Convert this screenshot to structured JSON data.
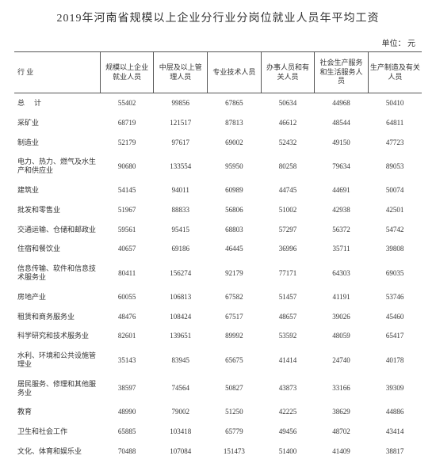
{
  "title": "2019年河南省规模以上企业分行业分岗位就业人员年平均工资",
  "unit_label": "单位：   元",
  "columns": {
    "industry": "行        业",
    "c1": "规模以上企业就业人员",
    "c2": "中层及以上管理人员",
    "c3": "专业技术人员",
    "c4": "办事人员和有关人员",
    "c5": "社会生产服务和生活服务人员",
    "c6": "生产制造及有关人员"
  },
  "rows": [
    {
      "label": "总计",
      "total": true,
      "v": [
        "55402",
        "99856",
        "67865",
        "50634",
        "44968",
        "50410"
      ]
    },
    {
      "label": "采矿业",
      "v": [
        "68719",
        "121517",
        "87813",
        "46612",
        "48544",
        "64811"
      ]
    },
    {
      "label": "制造业",
      "v": [
        "52179",
        "97617",
        "69002",
        "52432",
        "49150",
        "47723"
      ]
    },
    {
      "label": "电力、热力、燃气及水生产和供应业",
      "v": [
        "90680",
        "133554",
        "95950",
        "80258",
        "79634",
        "89053"
      ]
    },
    {
      "label": "建筑业",
      "v": [
        "54145",
        "94011",
        "60989",
        "44745",
        "44691",
        "50074"
      ]
    },
    {
      "label": "批发和零售业",
      "v": [
        "51967",
        "88833",
        "56806",
        "51002",
        "42938",
        "42501"
      ]
    },
    {
      "label": "交通运输、仓储和邮政业",
      "v": [
        "59561",
        "95415",
        "68803",
        "57297",
        "56372",
        "54742"
      ]
    },
    {
      "label": "住宿和餐饮业",
      "v": [
        "40657",
        "69186",
        "46445",
        "36996",
        "35711",
        "39808"
      ]
    },
    {
      "label": "信息传输、软件和信息技术服务业",
      "v": [
        "80411",
        "156274",
        "92179",
        "77171",
        "64303",
        "69035"
      ]
    },
    {
      "label": "房地产业",
      "v": [
        "60055",
        "106813",
        "67582",
        "51457",
        "41191",
        "53746"
      ]
    },
    {
      "label": "租赁和商务服务业",
      "v": [
        "48476",
        "108424",
        "67517",
        "48657",
        "39026",
        "45460"
      ]
    },
    {
      "label": "科学研究和技术服务业",
      "v": [
        "82601",
        "139651",
        "89992",
        "53592",
        "48059",
        "65417"
      ]
    },
    {
      "label": "水利、环境和公共设施管理业",
      "v": [
        "35143",
        "83945",
        "65675",
        "41414",
        "24740",
        "40178"
      ]
    },
    {
      "label": "居民服务、修理和其他服务业",
      "v": [
        "38597",
        "74564",
        "50827",
        "43873",
        "33166",
        "39309"
      ]
    },
    {
      "label": "教育",
      "v": [
        "48990",
        "79002",
        "51250",
        "42225",
        "38629",
        "44886"
      ]
    },
    {
      "label": "卫生和社会工作",
      "v": [
        "65885",
        "103418",
        "65779",
        "49456",
        "48702",
        "43414"
      ]
    },
    {
      "label": "文化、体育和娱乐业",
      "v": [
        "70488",
        "107084",
        "151473",
        "51400",
        "41409",
        "38817"
      ]
    }
  ]
}
